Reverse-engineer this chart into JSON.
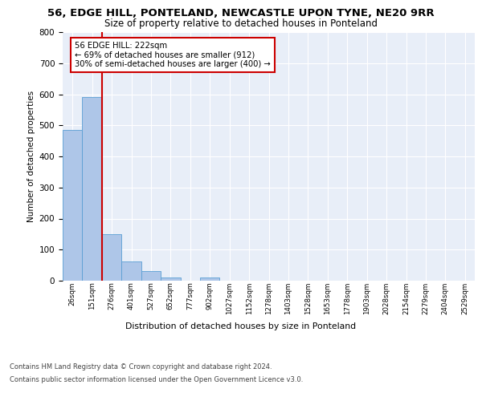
{
  "title1": "56, EDGE HILL, PONTELAND, NEWCASTLE UPON TYNE, NE20 9RR",
  "title2": "Size of property relative to detached houses in Ponteland",
  "xlabel": "Distribution of detached houses by size in Ponteland",
  "ylabel": "Number of detached properties",
  "bar_values": [
    485,
    592,
    150,
    63,
    30,
    10,
    0,
    10,
    0,
    0,
    0,
    0,
    0,
    0,
    0,
    0,
    0,
    0,
    0,
    0,
    0
  ],
  "bar_labels": [
    "26sqm",
    "151sqm",
    "276sqm",
    "401sqm",
    "527sqm",
    "652sqm",
    "777sqm",
    "902sqm",
    "1027sqm",
    "1152sqm",
    "1278sqm",
    "1403sqm",
    "1528sqm",
    "1653sqm",
    "1778sqm",
    "1903sqm",
    "2028sqm",
    "2154sqm",
    "2279sqm",
    "2404sqm",
    "2529sqm"
  ],
  "bar_color": "#aec6e8",
  "bar_edge_color": "#5a9fd4",
  "vline_x": 1.5,
  "vline_color": "#cc0000",
  "annotation_line1": "56 EDGE HILL: 222sqm",
  "annotation_line2": "← 69% of detached houses are smaller (912)",
  "annotation_line3": "30% of semi-detached houses are larger (400) →",
  "annotation_box_color": "#ffffff",
  "annotation_box_edge": "#cc0000",
  "ylim": [
    0,
    800
  ],
  "yticks": [
    0,
    100,
    200,
    300,
    400,
    500,
    600,
    700,
    800
  ],
  "background_color": "#e8eef8",
  "footer1": "Contains HM Land Registry data © Crown copyright and database right 2024.",
  "footer2": "Contains public sector information licensed under the Open Government Licence v3.0."
}
